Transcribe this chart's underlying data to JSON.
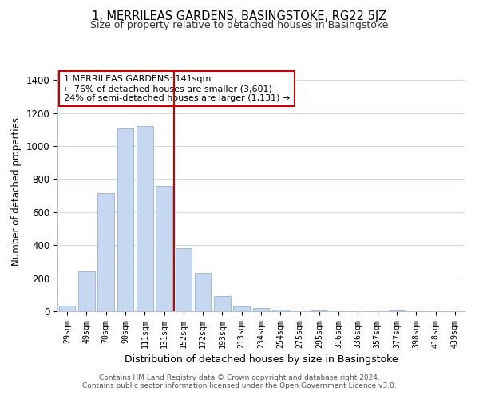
{
  "title1": "1, MERRILEAS GARDENS, BASINGSTOKE, RG22 5JZ",
  "title2": "Size of property relative to detached houses in Basingstoke",
  "xlabel": "Distribution of detached houses by size in Basingstoke",
  "ylabel": "Number of detached properties",
  "bar_labels": [
    "29sqm",
    "49sqm",
    "70sqm",
    "90sqm",
    "111sqm",
    "131sqm",
    "152sqm",
    "172sqm",
    "193sqm",
    "213sqm",
    "234sqm",
    "254sqm",
    "275sqm",
    "295sqm",
    "316sqm",
    "336sqm",
    "357sqm",
    "377sqm",
    "398sqm",
    "418sqm",
    "439sqm"
  ],
  "bar_values": [
    35,
    240,
    715,
    1105,
    1120,
    760,
    380,
    230,
    90,
    30,
    18,
    10,
    0,
    5,
    0,
    0,
    0,
    5,
    0,
    0,
    0
  ],
  "bar_color": "#c5d8f0",
  "bar_edge_color": "#a0b8d8",
  "vline_x_index": 5,
  "vline_color": "#cc0000",
  "annotation_text": "1 MERRILEAS GARDENS: 141sqm\n← 76% of detached houses are smaller (3,601)\n24% of semi-detached houses are larger (1,131) →",
  "annotation_box_color": "#ffffff",
  "annotation_box_edge": "#cc0000",
  "ylim": [
    0,
    1450
  ],
  "yticks": [
    0,
    200,
    400,
    600,
    800,
    1000,
    1200,
    1400
  ],
  "footer1": "Contains HM Land Registry data © Crown copyright and database right 2024.",
  "footer2": "Contains public sector information licensed under the Open Government Licence v3.0."
}
